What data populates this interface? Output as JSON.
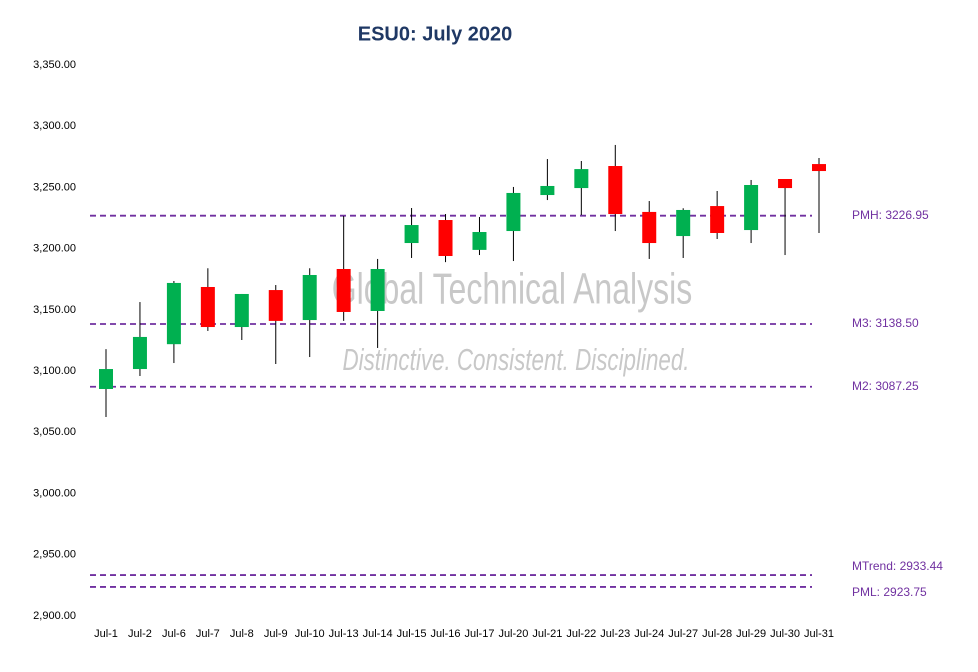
{
  "chart_data": {
    "type": "candlestick",
    "title": "ESU0: July 2020",
    "categories": [
      "Jul-1",
      "Jul-2",
      "Jul-6",
      "Jul-7",
      "Jul-8",
      "Jul-9",
      "Jul-10",
      "Jul-13",
      "Jul-14",
      "Jul-15",
      "Jul-16",
      "Jul-17",
      "Jul-20",
      "Jul-21",
      "Jul-22",
      "Jul-23",
      "Jul-24",
      "Jul-27",
      "Jul-28",
      "Jul-29",
      "Jul-30",
      "Jul-31"
    ],
    "open": [
      3085.4,
      3101.7,
      3122.0,
      3168.7,
      3136.0,
      3166.2,
      3141.7,
      3183.4,
      3149.1,
      3204.6,
      3223.4,
      3199.0,
      3214.4,
      3243.8,
      3249.5,
      3267.5,
      3230.0,
      3210.3,
      3234.8,
      3215.2,
      3256.9,
      3269.1
    ],
    "high": [
      3118.0,
      3156.4,
      3173.6,
      3184.0,
      3163.0,
      3170.3,
      3184.0,
      3226.7,
      3191.6,
      3233.2,
      3228.3,
      3225.9,
      3250.4,
      3273.2,
      3271.6,
      3284.7,
      3238.9,
      3233.0,
      3247.1,
      3256.1,
      3256.9,
      3274.0
    ],
    "low": [
      3062.5,
      3096.0,
      3106.6,
      3132.8,
      3125.4,
      3105.8,
      3111.5,
      3141.0,
      3118.9,
      3192.4,
      3189.0,
      3194.8,
      3189.9,
      3239.7,
      3227.5,
      3214.4,
      3191.6,
      3192.4,
      3207.9,
      3204.6,
      3194.8,
      3212.8
    ],
    "close": [
      3101.7,
      3127.9,
      3172.0,
      3136.0,
      3163.0,
      3141.0,
      3178.5,
      3148.3,
      3183.4,
      3219.3,
      3194.0,
      3213.6,
      3245.5,
      3251.2,
      3265.0,
      3228.3,
      3204.6,
      3231.6,
      3212.8,
      3252.0,
      3249.5,
      3263.4
    ],
    "up_color": "#00b050",
    "down_color": "#ff0000",
    "ylim": [
      2900,
      3350
    ],
    "yticks": [
      {
        "value": 2900,
        "label": "2,900.00"
      },
      {
        "value": 2950,
        "label": "2,950.00"
      },
      {
        "value": 3000,
        "label": "3,000.00"
      },
      {
        "value": 3050,
        "label": "3,050.00"
      },
      {
        "value": 3100,
        "label": "3,100.00"
      },
      {
        "value": 3150,
        "label": "3,150.00"
      },
      {
        "value": 3200,
        "label": "3,200.00"
      },
      {
        "value": 3250,
        "label": "3,250.00"
      },
      {
        "value": 3300,
        "label": "3,300.00"
      },
      {
        "value": 3350,
        "label": "3,350.00"
      }
    ],
    "levels": [
      {
        "label": "PMH: 3226.95",
        "value": 3226.95
      },
      {
        "label": "M3: 3138.50",
        "value": 3138.5
      },
      {
        "label": "M2: 3087.25",
        "value": 3087.25
      },
      {
        "label": "MTrend: 2933.44",
        "value": 2933.44
      },
      {
        "label": "PML: 2923.75",
        "value": 2923.75
      }
    ],
    "level_color": "#7030a0",
    "watermark": [
      "Global Technical Analysis",
      "Distinctive. Consistent. Disciplined."
    ]
  }
}
